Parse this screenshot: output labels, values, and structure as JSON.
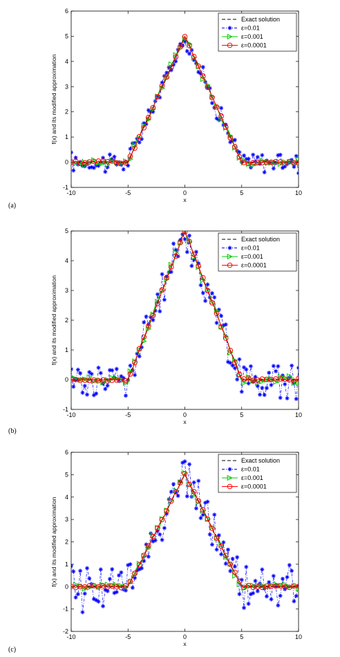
{
  "chart_data": [
    {
      "type": "line",
      "panel_label": "(a)",
      "xlabel": "x",
      "ylabel": "f(x) and its modified approximation",
      "xlim": [
        -10,
        10
      ],
      "ylim": [
        -1,
        6
      ],
      "xticks": [
        "-10",
        "-5",
        "0",
        "5",
        "10"
      ],
      "yticks": [
        "-1",
        "0",
        "1",
        "2",
        "3",
        "4",
        "5",
        "6"
      ],
      "legend_position": "top-right",
      "noise_amplitude_eps_0.01": 0.35,
      "series": [
        {
          "name": "Exact solution",
          "style": "dashed",
          "color": "#000000"
        },
        {
          "name": "ε=0.01",
          "marker": "asterisk",
          "style": "dash-dot",
          "color": "#0000ff"
        },
        {
          "name": "ε=0.001",
          "marker": "triangle-right",
          "style": "solid",
          "color": "#00cc00"
        },
        {
          "name": "ε=0.0001",
          "marker": "circle",
          "style": "solid",
          "color": "#ff0000"
        }
      ]
    },
    {
      "type": "line",
      "panel_label": "(b)",
      "xlabel": "x",
      "ylabel": "f(x) and its modified approximation",
      "xlim": [
        -10,
        10
      ],
      "ylim": [
        -1,
        5
      ],
      "xticks": [
        "-10",
        "-5",
        "0",
        "5",
        "10"
      ],
      "yticks": [
        "-1",
        "0",
        "1",
        "2",
        "3",
        "4",
        "5"
      ],
      "legend_position": "top-right",
      "noise_amplitude_eps_0.01": 0.5,
      "series": [
        {
          "name": "Exact solution",
          "style": "dashed",
          "color": "#000000"
        },
        {
          "name": "ε=0.01",
          "marker": "asterisk",
          "style": "dash-dot",
          "color": "#0000ff"
        },
        {
          "name": "ε=0.001",
          "marker": "triangle-right",
          "style": "solid",
          "color": "#00cc00"
        },
        {
          "name": "ε=0.0001",
          "marker": "circle",
          "style": "solid",
          "color": "#ff0000"
        }
      ]
    },
    {
      "type": "line",
      "panel_label": "(c)",
      "xlabel": "x",
      "ylabel": "f(x) and its modified approximation",
      "xlim": [
        -10,
        10
      ],
      "ylim": [
        -2,
        6
      ],
      "xticks": [
        "-10",
        "-5",
        "0",
        "5",
        "10"
      ],
      "yticks": [
        "-2",
        "-1",
        "0",
        "1",
        "2",
        "3",
        "4",
        "5",
        "6"
      ],
      "legend_position": "top-right",
      "noise_amplitude_eps_0.01": 0.85,
      "series": [
        {
          "name": "Exact solution",
          "style": "dashed",
          "color": "#000000"
        },
        {
          "name": "ε=0.01",
          "marker": "asterisk",
          "style": "dash-dot",
          "color": "#0000ff"
        },
        {
          "name": "ε=0.001",
          "marker": "triangle-right",
          "style": "solid",
          "color": "#00cc00"
        },
        {
          "name": "ε=0.0001",
          "marker": "circle",
          "style": "solid",
          "color": "#ff0000"
        }
      ]
    }
  ]
}
